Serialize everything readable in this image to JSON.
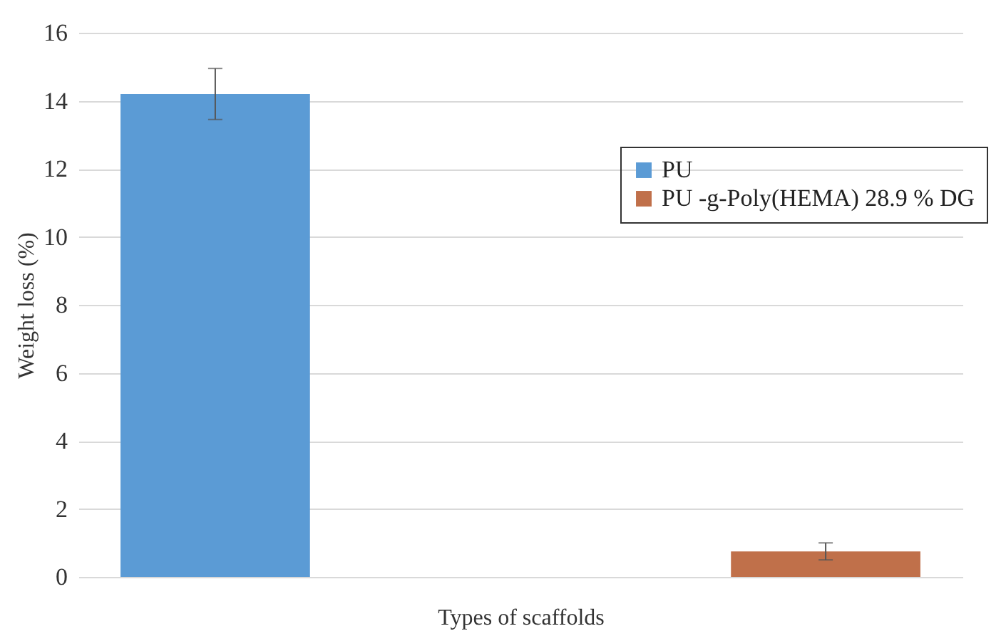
{
  "chart_data": {
    "type": "bar",
    "xlabel": "Types of scaffolds",
    "ylabel": "Weight loss (%)",
    "categories": [
      null,
      null
    ],
    "series": [
      {
        "name": "PU",
        "color": "#5b9bd5",
        "values": [
          14.2,
          null
        ],
        "errors": [
          0.75,
          null
        ]
      },
      {
        "name": "PU -g-Poly(HEMA) 28.9 % DG",
        "color": "#c0704a",
        "values": [
          null,
          0.75
        ],
        "errors": [
          null,
          0.25
        ]
      }
    ],
    "ylim": [
      0,
      16
    ],
    "yticks": [
      0,
      2,
      4,
      6,
      8,
      10,
      12,
      14,
      16
    ],
    "grid": "y",
    "legend": "top right"
  }
}
